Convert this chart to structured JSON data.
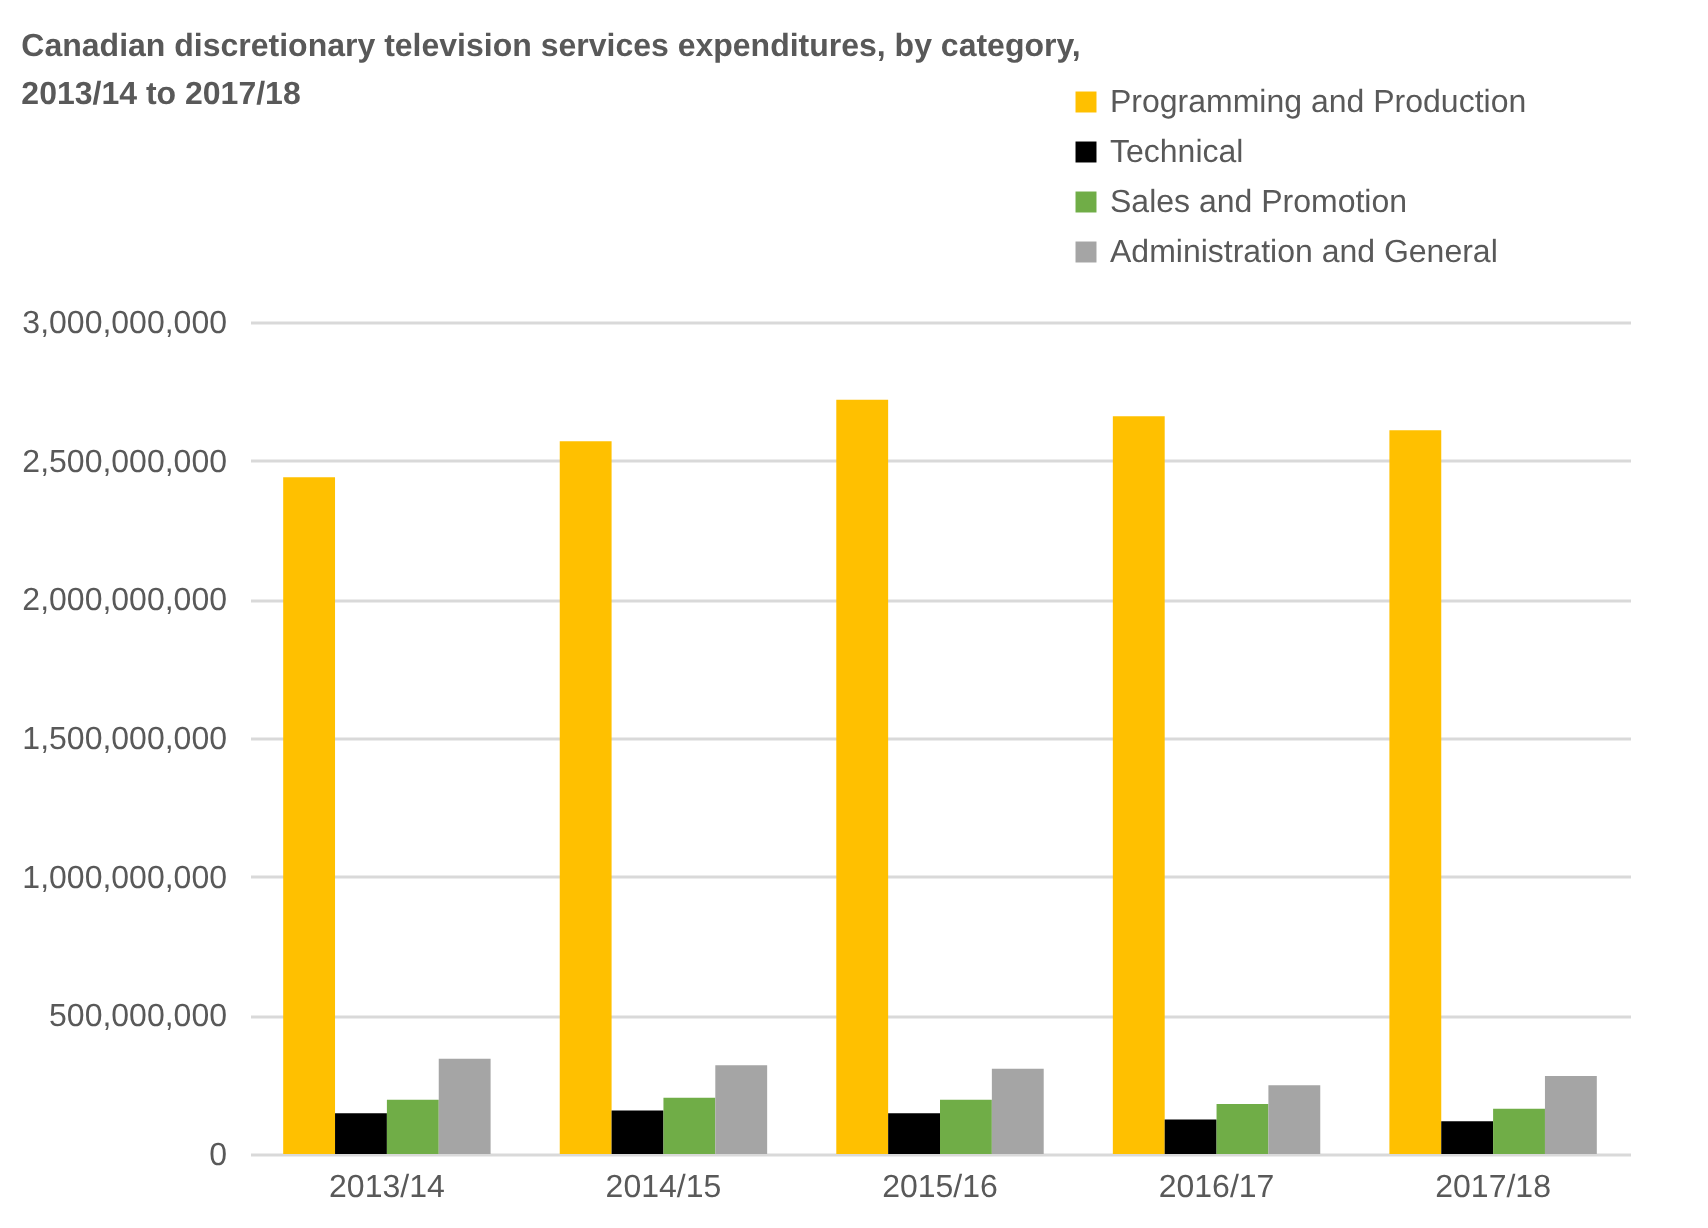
{
  "chart_data": {
    "type": "bar",
    "title": "Canadian discretionary television services expenditures, by category,\n2013/14 to 2017/18",
    "categories": [
      "2013/14",
      "2014/15",
      "2015/16",
      "2016/17",
      "2017/18"
    ],
    "series": [
      {
        "name": "Programming and Production",
        "color": "#ffc000",
        "values": [
          2440000000,
          2570000000,
          2720000000,
          2660000000,
          2610000000
        ]
      },
      {
        "name": "Technical",
        "color": "#000000",
        "values": [
          147000000,
          157000000,
          147000000,
          124000000,
          118000000
        ]
      },
      {
        "name": "Sales and Promotion",
        "color": "#70ad47",
        "values": [
          196000000,
          203000000,
          196000000,
          180000000,
          163000000
        ]
      },
      {
        "name": "Administration and General",
        "color": "#a5a5a5",
        "values": [
          343000000,
          320000000,
          307000000,
          248000000,
          281000000
        ]
      }
    ],
    "ylim": [
      0,
      3000000000
    ],
    "yticks": [
      0,
      {
        "value": 500000000,
        "label": "500,000,000"
      },
      {
        "value": 1000000000,
        "label": "1,000,000,000"
      },
      {
        "value": 1500000000,
        "label": "1,500,000,000"
      },
      {
        "value": 2000000000,
        "label": "2,000,000,000"
      },
      {
        "value": 2500000000,
        "label": "2,500,000,000"
      },
      {
        "value": 3000000000,
        "label": "3,000,000,000"
      }
    ],
    "grid": "y",
    "legend": "top right"
  }
}
